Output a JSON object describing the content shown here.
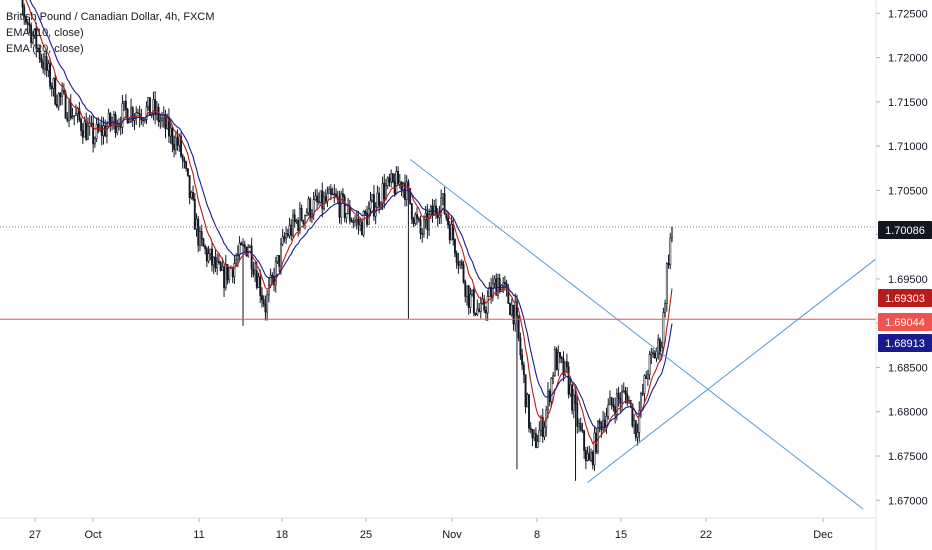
{
  "legend": {
    "title": "British Pound / Canadian Dollar, 4h, FXCM",
    "ema1": "EMA (10, close)",
    "ema2": "EMA (20, close)"
  },
  "chart_data": {
    "type": "candlestick",
    "title": "British Pound / Canadian Dollar, 4h, FXCM",
    "ylim": [
      1.668,
      1.7265
    ],
    "y_ticks": [
      "1.72500",
      "1.72000",
      "1.71500",
      "1.71000",
      "1.70500",
      "1.70000",
      "1.69500",
      "1.69000",
      "1.68500",
      "1.68000",
      "1.67500",
      "1.67000"
    ],
    "x_ticks": [
      "27",
      "Oct",
      "11",
      "18",
      "25",
      "Nov",
      "8",
      "15",
      "22",
      "Dec"
    ],
    "price_badges": [
      {
        "label": "1.70086",
        "value": 1.70086,
        "color": "#131722"
      },
      {
        "label": "1.69303",
        "value": 1.69303,
        "color": "#b71c1c"
      },
      {
        "label": "1.69044",
        "value": 1.69044,
        "color": "#ef5350"
      },
      {
        "label": "1.68913",
        "value": 1.68913,
        "color": "#1a1a8c"
      }
    ],
    "horizontal_lines": [
      {
        "value": 1.70086,
        "style": "dotted",
        "color": "#787b86"
      },
      {
        "value": 1.69044,
        "style": "solid",
        "color": "#ef5350"
      }
    ],
    "trend_lines": [
      {
        "from": {
          "bar": 234,
          "price": 1.7085
        },
        "to": {
          "bar": 497,
          "price": 1.669
        },
        "color": "#5b9bd5"
      },
      {
        "from": {
          "bar": 337,
          "price": 1.672
        },
        "to": {
          "bar": 504,
          "price": 1.6972
        },
        "color": "#5b9bd5"
      }
    ],
    "series": [
      {
        "name": "EMA (10, close)",
        "color": "#b71c1c"
      },
      {
        "name": "EMA (20, close)",
        "color": "#1a1a8c"
      }
    ],
    "candles": {
      "count": 387,
      "anchors": [
        [
          0,
          1.73
        ],
        [
          28,
          1.716
        ],
        [
          50,
          1.711
        ],
        [
          70,
          1.714
        ],
        [
          85,
          1.714
        ],
        [
          100,
          1.71
        ],
        [
          112,
          1.699
        ],
        [
          125,
          1.695
        ],
        [
          140,
          1.699
        ],
        [
          150,
          1.692
        ],
        [
          162,
          1.7
        ],
        [
          175,
          1.703
        ],
        [
          190,
          1.704
        ],
        [
          205,
          1.701
        ],
        [
          218,
          1.705
        ],
        [
          230,
          1.706
        ],
        [
          240,
          1.7
        ],
        [
          252,
          1.704
        ],
        [
          260,
          1.699
        ],
        [
          268,
          1.693
        ],
        [
          275,
          1.691
        ],
        [
          285,
          1.695
        ],
        [
          295,
          1.691
        ],
        [
          305,
          1.676
        ],
        [
          312,
          1.679
        ],
        [
          318,
          1.686
        ],
        [
          325,
          1.684
        ],
        [
          332,
          1.678
        ],
        [
          338,
          1.674
        ],
        [
          345,
          1.679
        ],
        [
          352,
          1.681
        ],
        [
          360,
          1.682
        ],
        [
          365,
          1.678
        ],
        [
          372,
          1.685
        ],
        [
          380,
          1.688
        ],
        [
          383,
          1.696
        ],
        [
          386,
          1.701
        ]
      ]
    }
  }
}
